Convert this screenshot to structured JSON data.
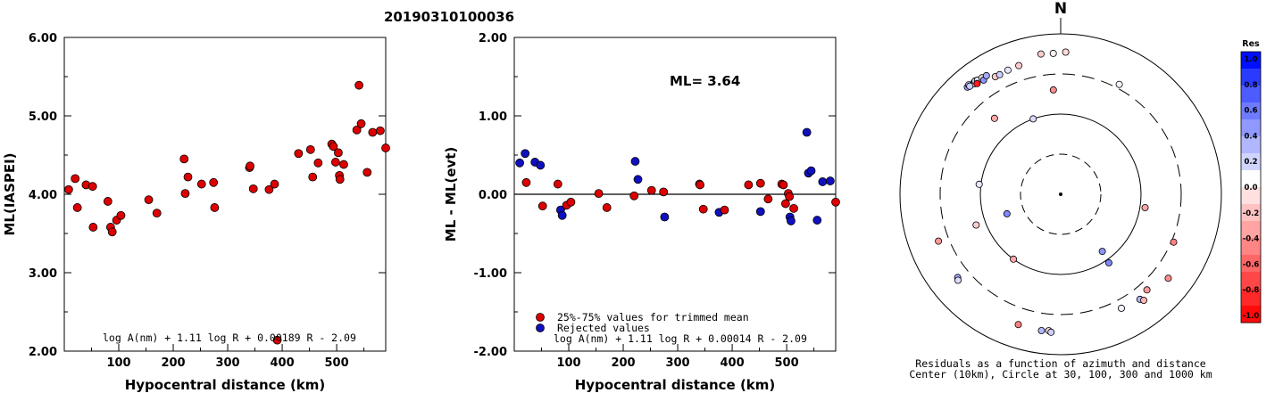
{
  "title": "20190310100036",
  "chart_data": [
    {
      "type": "scatter",
      "ylabel": "ML(IASPEI)",
      "xlabel": "Hypocentral distance (km)",
      "xlim": [
        0,
        590
      ],
      "ylim": [
        2.0,
        6.0
      ],
      "xticks": [
        "100",
        "200",
        "300",
        "400",
        "500"
      ],
      "yticks": [
        "2.00",
        "3.00",
        "4.00",
        "5.00",
        "6.00"
      ],
      "formula": "log A(nm) + 1.11 log R + 0.00189 R - 2.09",
      "color": "#dd0000",
      "points": [
        [
          8,
          4.06
        ],
        [
          20,
          4.2
        ],
        [
          24,
          3.83
        ],
        [
          40,
          4.12
        ],
        [
          52,
          4.1
        ],
        [
          53,
          3.58
        ],
        [
          80,
          3.91
        ],
        [
          85,
          3.58
        ],
        [
          88,
          3.52
        ],
        [
          96,
          3.67
        ],
        [
          104,
          3.73
        ],
        [
          155,
          3.93
        ],
        [
          170,
          3.76
        ],
        [
          220,
          4.45
        ],
        [
          222,
          4.01
        ],
        [
          227,
          4.22
        ],
        [
          252,
          4.13
        ],
        [
          274,
          4.15
        ],
        [
          276,
          3.83
        ],
        [
          340,
          4.34
        ],
        [
          341,
          4.36
        ],
        [
          347,
          4.07
        ],
        [
          376,
          4.06
        ],
        [
          386,
          4.13
        ],
        [
          391,
          2.14
        ],
        [
          430,
          4.52
        ],
        [
          452,
          4.57
        ],
        [
          456,
          4.22
        ],
        [
          466,
          4.4
        ],
        [
          491,
          4.64
        ],
        [
          494,
          4.61
        ],
        [
          498,
          4.41
        ],
        [
          503,
          4.53
        ],
        [
          505,
          4.24
        ],
        [
          506,
          4.19
        ],
        [
          513,
          4.38
        ],
        [
          537,
          4.82
        ],
        [
          541,
          5.39
        ],
        [
          545,
          4.9
        ],
        [
          556,
          4.28
        ],
        [
          566,
          4.79
        ],
        [
          580,
          4.81
        ],
        [
          595,
          4.59
        ]
      ]
    },
    {
      "type": "scatter",
      "ylabel": "ML - ML(evt)",
      "xlabel": "Hypocentral distance (km)",
      "xlim": [
        0,
        590
      ],
      "ylim": [
        -2.0,
        2.0
      ],
      "xticks": [
        "100",
        "200",
        "300",
        "400",
        "500"
      ],
      "yticks": [
        "-2.00",
        "-1.00",
        "0.00",
        "1.00",
        "2.00"
      ],
      "annotation": "ML= 3.64",
      "formula": "log A(nm) + 1.11 log R + 0.00014 R - 2.09",
      "legend": [
        "25%-75% values for trimmed mean",
        "Rejected values"
      ],
      "colors": {
        "used": "#dd0000",
        "rejected": "#1010c0"
      },
      "points_used": [
        [
          22,
          0.15
        ],
        [
          52,
          -0.15
        ],
        [
          80,
          0.13
        ],
        [
          96,
          -0.14
        ],
        [
          104,
          -0.1
        ],
        [
          155,
          0.01
        ],
        [
          170,
          -0.17
        ],
        [
          220,
          -0.02
        ],
        [
          252,
          0.05
        ],
        [
          274,
          0.03
        ],
        [
          340,
          0.13
        ],
        [
          341,
          0.12
        ],
        [
          347,
          -0.19
        ],
        [
          386,
          -0.2
        ],
        [
          430,
          0.12
        ],
        [
          452,
          0.14
        ],
        [
          466,
          -0.06
        ],
        [
          491,
          0.13
        ],
        [
          494,
          0.12
        ],
        [
          498,
          -0.12
        ],
        [
          503,
          0.01
        ],
        [
          505,
          -0.03
        ],
        [
          513,
          -0.18
        ],
        [
          595,
          -0.1
        ]
      ],
      "points_rejected": [
        [
          10,
          0.4
        ],
        [
          20,
          0.52
        ],
        [
          38,
          0.41
        ],
        [
          48,
          0.37
        ],
        [
          85,
          -0.2
        ],
        [
          88,
          -0.27
        ],
        [
          222,
          0.42
        ],
        [
          227,
          0.19
        ],
        [
          276,
          -0.29
        ],
        [
          376,
          -0.23
        ],
        [
          452,
          -0.22
        ],
        [
          506,
          -0.29
        ],
        [
          508,
          -0.34
        ],
        [
          537,
          0.79
        ],
        [
          540,
          0.27
        ],
        [
          545,
          0.3
        ],
        [
          556,
          -0.33
        ],
        [
          566,
          0.16
        ],
        [
          580,
          0.17
        ]
      ]
    },
    {
      "type": "scatter",
      "title": "N",
      "caption": [
        "Residuals as a function of azimuth and distance",
        "Center (10km), Circle at 30, 100, 300 and 1000 km"
      ],
      "colorbar": {
        "title": "Res",
        "ticks": [
          "1.0",
          "0.8",
          "0.6",
          "0.4",
          "0.2",
          "0.0",
          "-0.2",
          "-0.4",
          "-0.6",
          "-0.8",
          "-1.0"
        ],
        "colors": [
          "#0010ff",
          "#2a3bff",
          "#4d5cff",
          "#6e7bff",
          "#8f99ff",
          "#b0b7ff",
          "#d0d5ff",
          "#ffffff",
          "#ffe0e0",
          "#ffc2c2",
          "#ffa3a3",
          "#ff8585",
          "#ff6666",
          "#ff4747",
          "#ff2929",
          "#ff0a0a"
        ]
      },
      "stations": [
        {
          "az": -38,
          "d": 560,
          "res": 0.5
        },
        {
          "az": -38,
          "d": 545,
          "res": -0.3
        },
        {
          "az": -41,
          "d": 575,
          "res": 0.4
        },
        {
          "az": -40,
          "d": 590,
          "res": 0.3
        },
        {
          "az": -40,
          "d": 560,
          "res": 0.2
        },
        {
          "az": -37,
          "d": 575,
          "res": 0.25
        },
        {
          "az": -36,
          "d": 560,
          "res": 0.1
        },
        {
          "az": -34,
          "d": 550,
          "res": -0.1
        },
        {
          "az": -37,
          "d": 520,
          "res": -0.9
        },
        {
          "az": -34,
          "d": 505,
          "res": 0.45
        },
        {
          "az": -32,
          "d": 540,
          "res": 0.35
        },
        {
          "az": -29,
          "d": 460,
          "res": -0.2
        },
        {
          "az": -27,
          "d": 455,
          "res": 0.2
        },
        {
          "az": -23,
          "d": 465,
          "res": 0.1
        },
        {
          "az": -18,
          "d": 470,
          "res": -0.2
        },
        {
          "az": -8,
          "d": 570,
          "res": -0.2
        },
        {
          "az": -3,
          "d": 560,
          "res": -0.05
        },
        {
          "az": 2,
          "d": 580,
          "res": -0.15
        },
        {
          "az": 28,
          "d": 340,
          "res": 0.05
        },
        {
          "az": -4,
          "d": 195,
          "res": -0.45
        },
        {
          "az": -41,
          "d": 175,
          "res": -0.35
        },
        {
          "az": -20,
          "d": 100,
          "res": 0.15
        },
        {
          "az": -83,
          "d": 105,
          "res": 0.1
        },
        {
          "az": -144,
          "d": 100,
          "res": -0.35
        },
        {
          "az": -110,
          "d": 50,
          "res": 0.5
        },
        {
          "az": -110,
          "d": 130,
          "res": -0.2
        },
        {
          "az": 144,
          "d": 75,
          "res": 0.45
        },
        {
          "az": 145,
          "d": 110,
          "res": 0.5
        },
        {
          "az": 99,
          "d": 115,
          "res": -0.35
        },
        {
          "az": -111,
          "d": 410,
          "res": -0.4
        },
        {
          "az": -129,
          "d": 430,
          "res": 0.35
        },
        {
          "az": -130,
          "d": 450,
          "res": 0.15
        },
        {
          "az": -162,
          "d": 495,
          "res": -0.5
        },
        {
          "az": -172,
          "d": 505,
          "res": 0.3
        },
        {
          "az": -175,
          "d": 495,
          "res": -0.15
        },
        {
          "az": -176,
          "d": 515,
          "res": 0.2
        },
        {
          "az": 152,
          "d": 390,
          "res": 0.05
        },
        {
          "az": 138,
          "d": 385,
          "res": -0.4
        },
        {
          "az": 143,
          "d": 420,
          "res": 0.3
        },
        {
          "az": 142,
          "d": 460,
          "res": -0.3
        },
        {
          "az": 113,
          "d": 320,
          "res": -0.5
        },
        {
          "az": 128,
          "d": 485,
          "res": -0.45
        }
      ]
    }
  ]
}
